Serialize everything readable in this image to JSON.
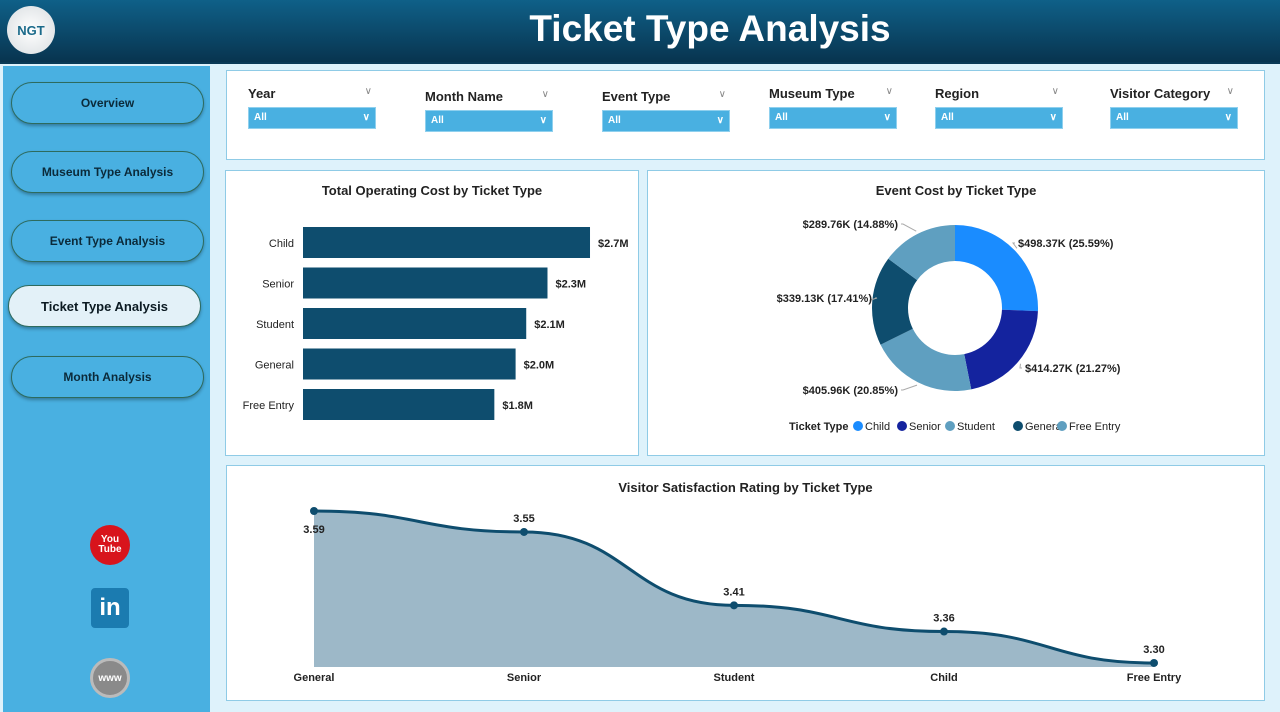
{
  "header": {
    "title": "Ticket Type Analysis",
    "logo_text": "NGT"
  },
  "sidebar": {
    "items": [
      {
        "label": "Overview"
      },
      {
        "label": "Museum Type Analysis"
      },
      {
        "label": "Event Type Analysis"
      },
      {
        "label": "Ticket Type Analysis",
        "active": true
      },
      {
        "label": "Month Analysis"
      }
    ],
    "social": [
      {
        "icon": "youtube-icon",
        "label": "You Tube"
      },
      {
        "icon": "linkedin-icon",
        "label": "in"
      },
      {
        "icon": "globe-icon",
        "label": "www"
      }
    ]
  },
  "filters": [
    {
      "label": "Year",
      "value": "All"
    },
    {
      "label": "Month Name",
      "value": "All"
    },
    {
      "label": "Event Type",
      "value": "All"
    },
    {
      "label": "Museum Type",
      "value": "All"
    },
    {
      "label": "Region",
      "value": "All"
    },
    {
      "label": "Visitor Category",
      "value": "All"
    }
  ],
  "chart_data": [
    {
      "type": "bar",
      "orientation": "horizontal",
      "title": "Total Operating Cost by Ticket Type",
      "categories": [
        "Child",
        "Senior",
        "Student",
        "General",
        "Free Entry"
      ],
      "values": [
        2.7,
        2.3,
        2.1,
        2.0,
        1.8
      ],
      "data_labels": [
        "$2.7M",
        "$2.3M",
        "$2.1M",
        "$2.0M",
        "$1.8M"
      ],
      "color": "#0e4d6e"
    },
    {
      "type": "pie",
      "donut": true,
      "title": "Event Cost by Ticket Type",
      "legend_title": "Ticket Type",
      "legend_position": "bottom",
      "categories": [
        "Child",
        "Senior",
        "Student",
        "General",
        "Free Entry"
      ],
      "values": [
        498.37,
        414.27,
        405.96,
        339.13,
        289.76
      ],
      "data_labels": [
        "$498.37K (25.59%)",
        "$414.27K (21.27%)",
        "$405.96K (20.85%)",
        "$339.13K (17.41%)",
        "$289.76K (14.88%)"
      ],
      "colors": [
        "#1a8cff",
        "#14239e",
        "#5f9fc0",
        "#0e4d6e",
        "#5f9fc0"
      ]
    },
    {
      "type": "area",
      "title": "Visitor Satisfaction Rating by Ticket Type",
      "categories": [
        "General",
        "Senior",
        "Student",
        "Child",
        "Free Entry"
      ],
      "values": [
        3.59,
        3.55,
        3.41,
        3.36,
        3.3
      ],
      "data_labels": [
        "3.59",
        "3.55",
        "3.41",
        "3.36",
        "3.30"
      ],
      "line_color": "#0e4d6e",
      "fill_color": "#9db8c8"
    }
  ]
}
